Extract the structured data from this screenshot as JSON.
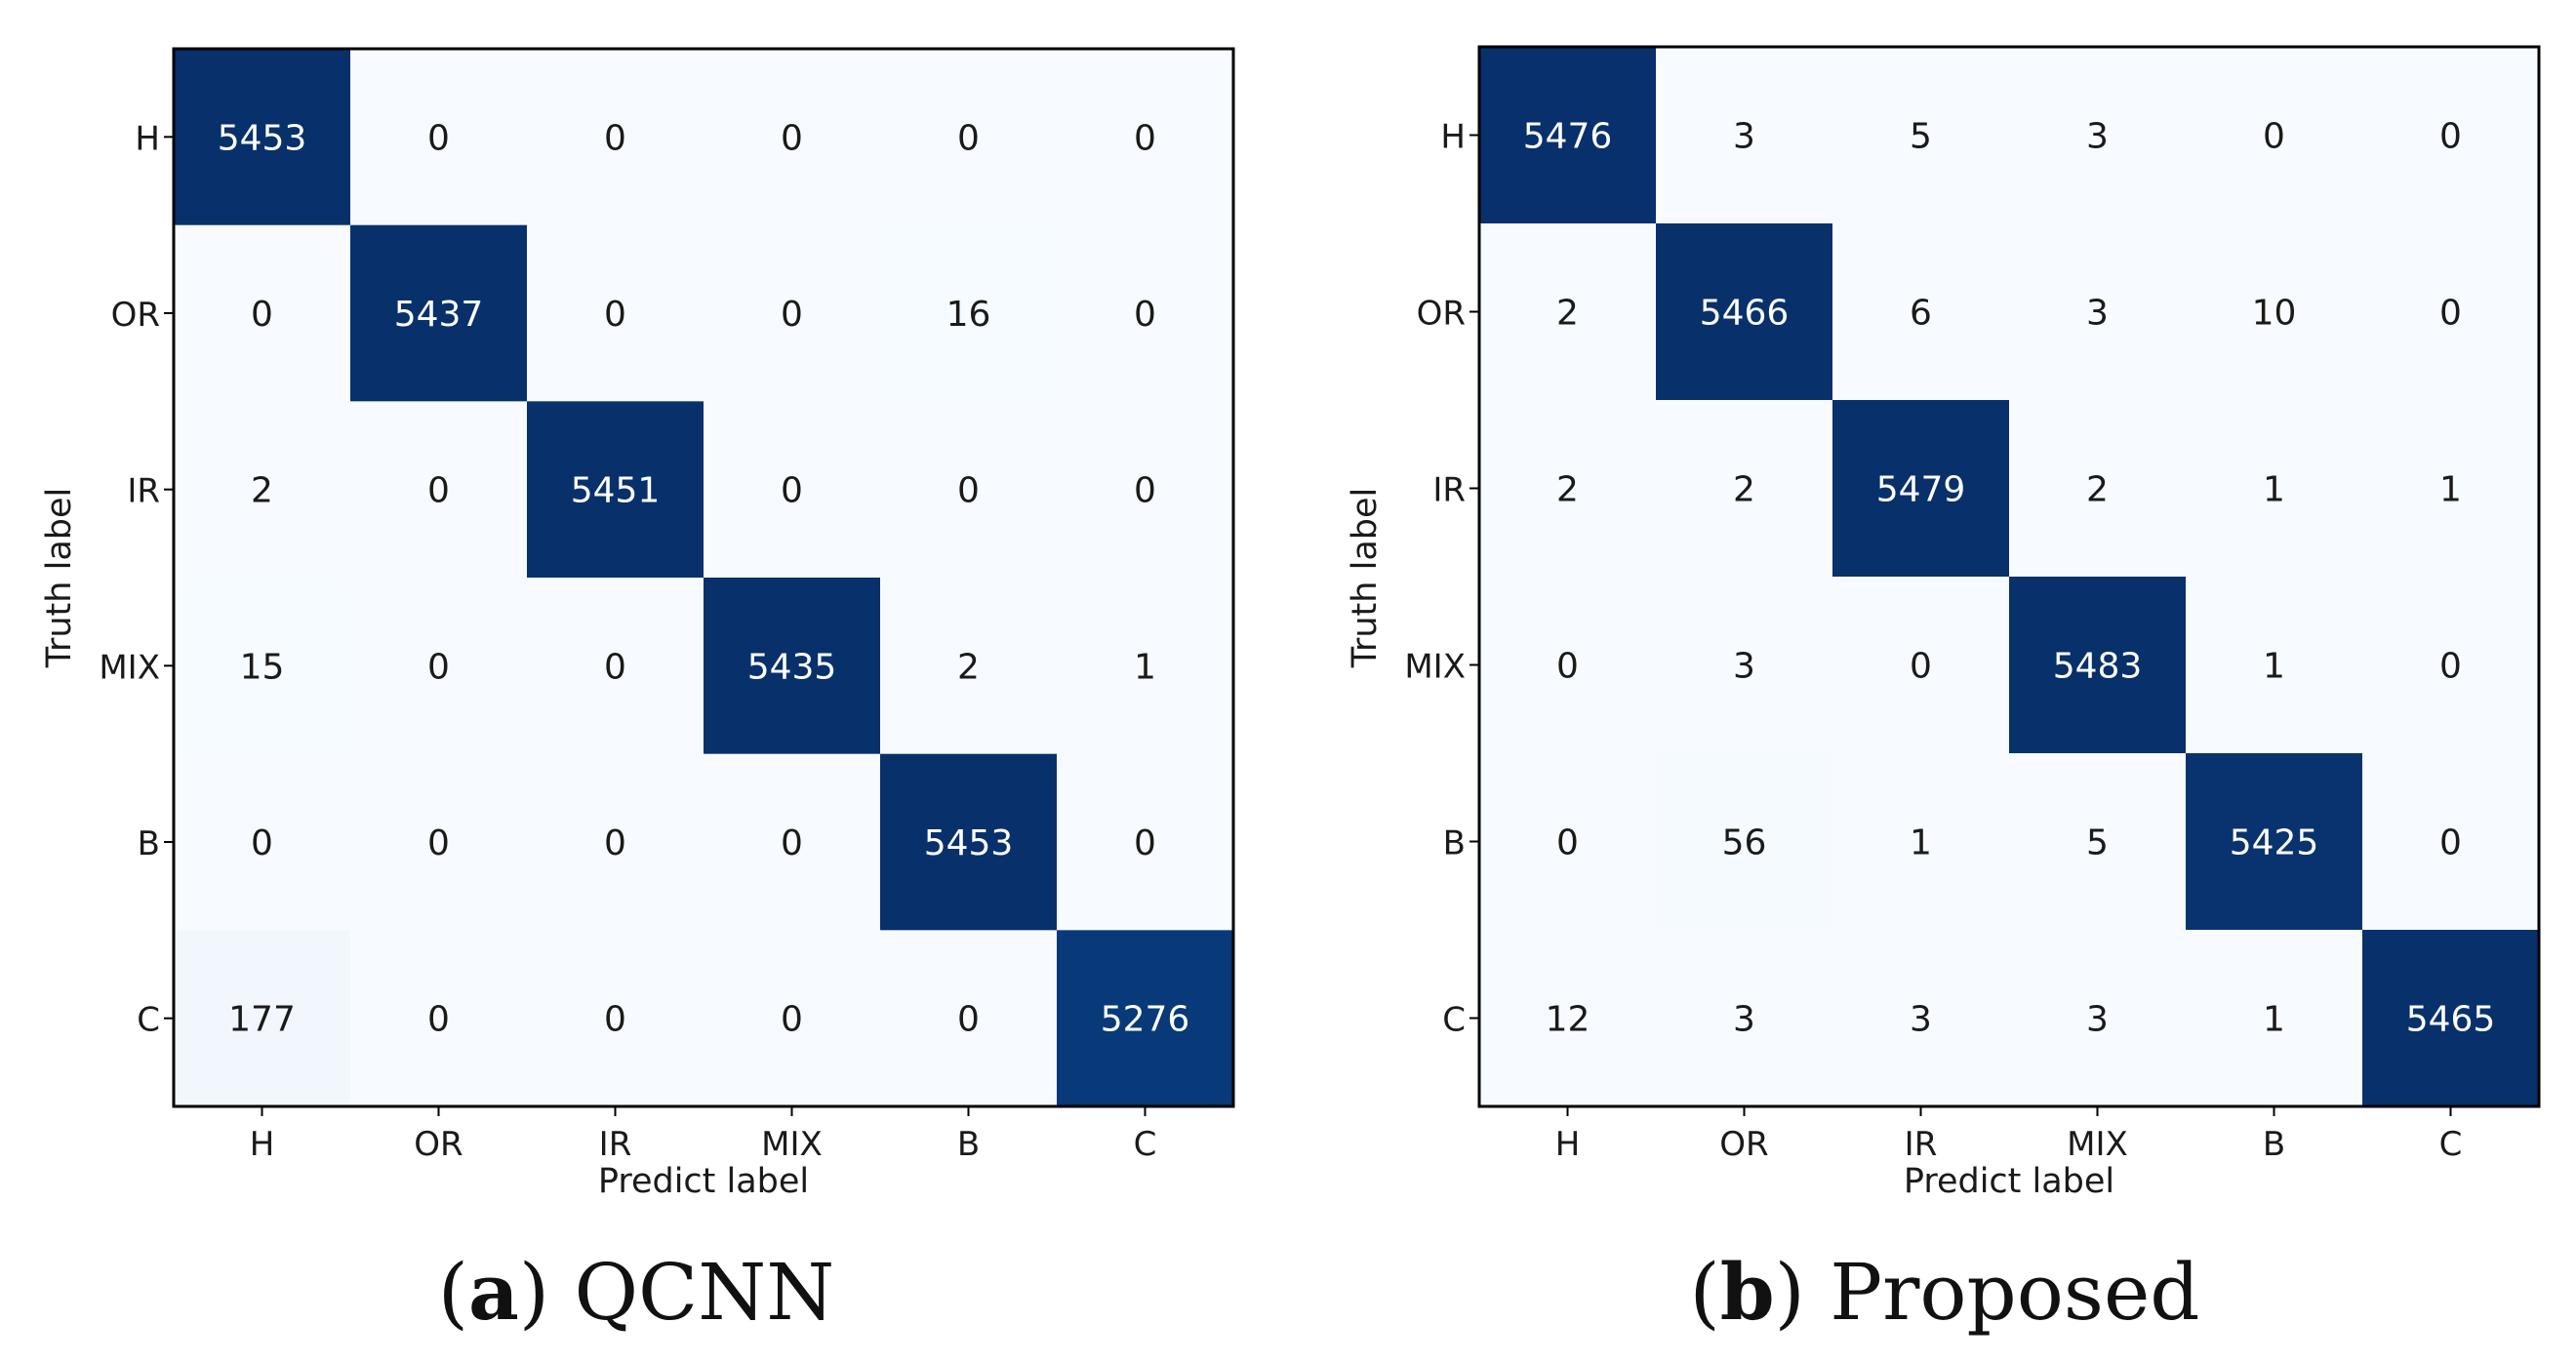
{
  "chart_data": [
    {
      "type": "heatmap",
      "title": "",
      "xlabel": "Predict label",
      "ylabel": "Truth label",
      "x_categories": [
        "H",
        "OR",
        "IR",
        "MIX",
        "B",
        "C"
      ],
      "y_categories": [
        "H",
        "OR",
        "IR",
        "MIX",
        "B",
        "C"
      ],
      "matrix": [
        [
          5453,
          0,
          0,
          0,
          0,
          0
        ],
        [
          0,
          5437,
          0,
          0,
          16,
          0
        ],
        [
          2,
          0,
          5451,
          0,
          0,
          0
        ],
        [
          15,
          0,
          0,
          5435,
          2,
          1
        ],
        [
          0,
          0,
          0,
          0,
          5453,
          0
        ],
        [
          177,
          0,
          0,
          0,
          0,
          5276
        ]
      ],
      "colormap": "Blues",
      "caption_letter": "a",
      "caption_name": "QCNN"
    },
    {
      "type": "heatmap",
      "title": "",
      "xlabel": "Predict label",
      "ylabel": "Truth label",
      "x_categories": [
        "H",
        "OR",
        "IR",
        "MIX",
        "B",
        "C"
      ],
      "y_categories": [
        "H",
        "OR",
        "IR",
        "MIX",
        "B",
        "C"
      ],
      "matrix": [
        [
          5476,
          3,
          5,
          3,
          0,
          0
        ],
        [
          2,
          5466,
          6,
          3,
          10,
          0
        ],
        [
          2,
          2,
          5479,
          2,
          1,
          1
        ],
        [
          0,
          3,
          0,
          5483,
          1,
          0
        ],
        [
          0,
          56,
          1,
          5,
          5425,
          0
        ],
        [
          12,
          3,
          3,
          3,
          1,
          5465
        ]
      ],
      "colormap": "Blues",
      "caption_letter": "b",
      "caption_name": "Proposed"
    }
  ],
  "colors": {
    "low": "#f7fbff",
    "mid1": "#deebf7",
    "mid2": "#c6dbef",
    "mid3": "#9ecae1",
    "mid4": "#6baed6",
    "mid5": "#4292c6",
    "mid6": "#2171b5",
    "mid7": "#08519c",
    "high": "#08306b",
    "text_dark": "#1a1a1a",
    "text_light": "#ffffff"
  }
}
